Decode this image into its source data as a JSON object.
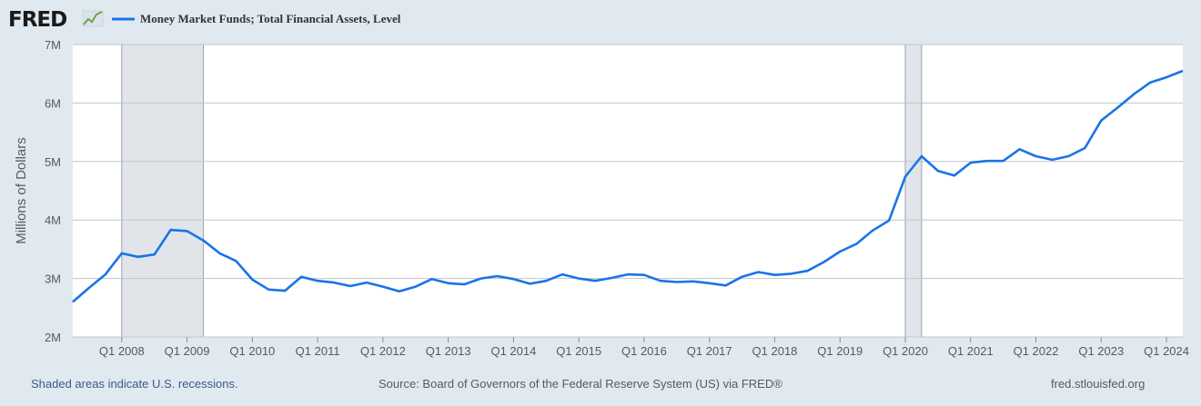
{
  "header": {
    "logo_text": "FRED",
    "legend_label": "Money Market Funds; Total Financial Assets, Level"
  },
  "footer": {
    "recession_note": "Shaded areas indicate U.S. recessions.",
    "source": "Source: Board of Governors of the Federal Reserve System (US) via FRED®",
    "site": "fred.stlouisfed.org"
  },
  "colors": {
    "line": "#1a73e8",
    "recession": "#e1e5ea",
    "background": "#e1e9f0",
    "plot": "#ffffff",
    "grid": "#bfc5cc"
  },
  "chart_data": {
    "type": "line",
    "title": "",
    "xlabel": "",
    "ylabel": "Millions of Dollars",
    "ylim": [
      2000000,
      7000000
    ],
    "y_ticks": [
      {
        "value": 2000000,
        "label": "2M"
      },
      {
        "value": 3000000,
        "label": "3M"
      },
      {
        "value": 4000000,
        "label": "4M"
      },
      {
        "value": 5000000,
        "label": "5M"
      },
      {
        "value": 6000000,
        "label": "6M"
      },
      {
        "value": 7000000,
        "label": "7M"
      }
    ],
    "x_ticks": [
      "Q1 2008",
      "Q1 2009",
      "Q1 2010",
      "Q1 2011",
      "Q1 2012",
      "Q1 2013",
      "Q1 2014",
      "Q1 2015",
      "Q1 2016",
      "Q1 2017",
      "Q1 2018",
      "Q1 2019",
      "Q1 2020",
      "Q1 2021",
      "Q1 2022",
      "Q1 2023",
      "Q1 2024"
    ],
    "grid": true,
    "legend_position": "top-left",
    "recessions": [
      {
        "start": "Q1 2008",
        "end": "Q2 2009"
      },
      {
        "start": "Q1 2020",
        "end": "Q2 2020"
      }
    ],
    "series": [
      {
        "name": "Money Market Funds; Total Financial Assets, Level",
        "x": [
          "Q2 2007",
          "Q3 2007",
          "Q4 2007",
          "Q1 2008",
          "Q2 2008",
          "Q3 2008",
          "Q4 2008",
          "Q1 2009",
          "Q2 2009",
          "Q3 2009",
          "Q4 2009",
          "Q1 2010",
          "Q2 2010",
          "Q3 2010",
          "Q4 2010",
          "Q1 2011",
          "Q2 2011",
          "Q3 2011",
          "Q4 2011",
          "Q1 2012",
          "Q2 2012",
          "Q3 2012",
          "Q4 2012",
          "Q1 2013",
          "Q2 2013",
          "Q3 2013",
          "Q4 2013",
          "Q1 2014",
          "Q2 2014",
          "Q3 2014",
          "Q4 2014",
          "Q1 2015",
          "Q2 2015",
          "Q3 2015",
          "Q4 2015",
          "Q1 2016",
          "Q2 2016",
          "Q3 2016",
          "Q4 2016",
          "Q1 2017",
          "Q2 2017",
          "Q3 2017",
          "Q4 2017",
          "Q1 2018",
          "Q2 2018",
          "Q3 2018",
          "Q4 2018",
          "Q1 2019",
          "Q2 2019",
          "Q3 2019",
          "Q4 2019",
          "Q1 2020",
          "Q2 2020",
          "Q3 2020",
          "Q4 2020",
          "Q1 2021",
          "Q2 2021",
          "Q3 2021",
          "Q4 2021",
          "Q1 2022",
          "Q2 2022",
          "Q3 2022",
          "Q4 2022",
          "Q1 2023",
          "Q2 2023",
          "Q3 2023",
          "Q4 2023",
          "Q1 2024",
          "Q2 2024"
        ],
        "values": [
          2600000,
          2840000,
          3070000,
          3430000,
          3370000,
          3410000,
          3830000,
          3810000,
          3650000,
          3430000,
          3300000,
          2980000,
          2810000,
          2790000,
          3030000,
          2960000,
          2930000,
          2870000,
          2930000,
          2860000,
          2780000,
          2860000,
          2990000,
          2920000,
          2900000,
          3000000,
          3040000,
          2990000,
          2910000,
          2960000,
          3070000,
          3000000,
          2960000,
          3010000,
          3070000,
          3060000,
          2960000,
          2940000,
          2950000,
          2920000,
          2880000,
          3030000,
          3110000,
          3060000,
          3080000,
          3130000,
          3280000,
          3460000,
          3590000,
          3820000,
          3990000,
          4740000,
          5090000,
          4840000,
          4760000,
          4980000,
          5010000,
          5010000,
          5210000,
          5090000,
          5030000,
          5090000,
          5230000,
          5700000,
          5920000,
          6150000,
          6350000,
          6440000,
          6550000
        ]
      }
    ]
  }
}
